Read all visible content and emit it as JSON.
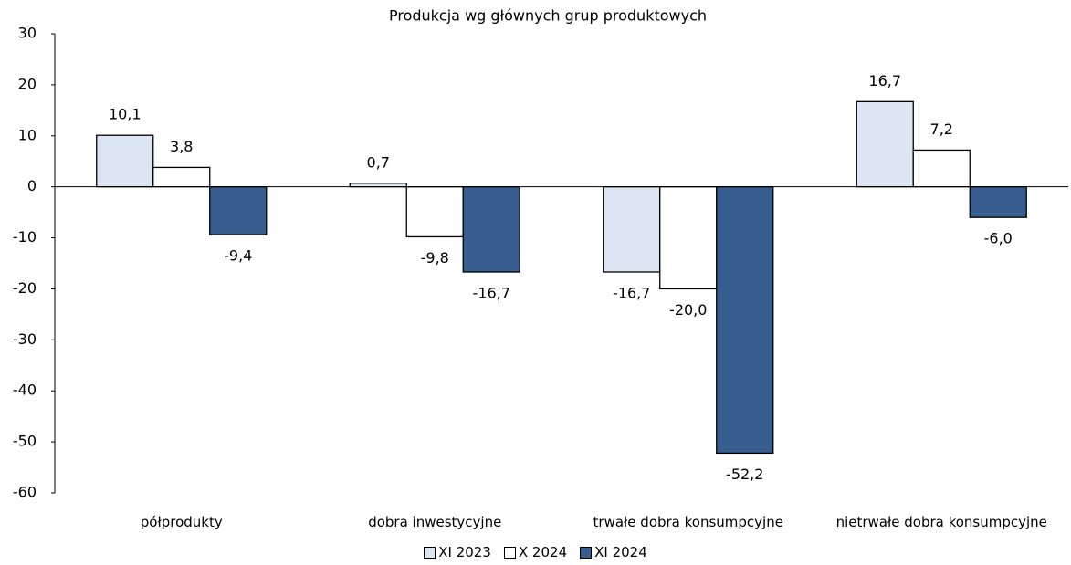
{
  "chart_data": {
    "type": "bar",
    "title": "Produkcja wg głównych grup produktowych",
    "categories": [
      "półprodukty",
      "dobra inwestycyjne",
      "trwałe dobra konsumpcyjne",
      "nietrwałe dobra konsumpcyjne"
    ],
    "series": [
      {
        "name": "XI 2023",
        "color": "#dce6f2",
        "values": [
          10.1,
          0.7,
          -16.7,
          16.7
        ],
        "value_labels": [
          "10,1",
          "0,7",
          "-16,7",
          "16,7"
        ]
      },
      {
        "name": "X 2024",
        "color": "#ffffff",
        "values": [
          3.8,
          -9.8,
          -20.0,
          7.2
        ],
        "value_labels": [
          "3,8",
          "-9,8",
          "-20,0",
          "7,2"
        ]
      },
      {
        "name": "XI 2024",
        "color": "#375e8f",
        "values": [
          -9.4,
          -16.7,
          -52.2,
          -6.0
        ],
        "value_labels": [
          "-9,4",
          "-16,7",
          "-52,2",
          "-6,0"
        ]
      }
    ],
    "ylim": [
      -60,
      30
    ],
    "yticks": [
      30,
      20,
      10,
      0,
      -10,
      -20,
      -30,
      -40,
      -50,
      -60
    ],
    "legend": "bottom"
  }
}
